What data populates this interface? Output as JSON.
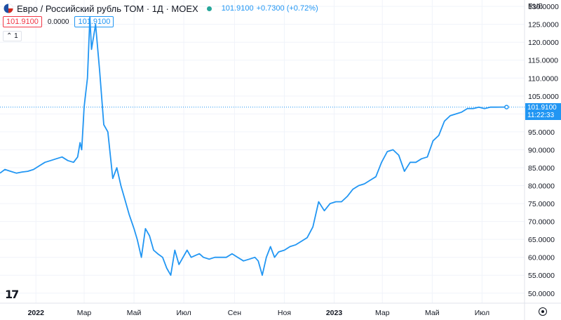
{
  "header": {
    "title": "Евро / Российский рубль TOM · 1Д · MOEX",
    "last_price": "101.9100",
    "change": "+0.7300 (+0.72%)",
    "bid": "101.9100",
    "spread": "0.0000",
    "ask": "101.9100",
    "collapse_label": "1"
  },
  "axis": {
    "unit": "RUB",
    "price_tag_value": "101.9100",
    "price_tag_time": "11:22:33"
  },
  "colors": {
    "line": "#2196f3",
    "grid": "#f0f3fa",
    "text": "#131722",
    "accent": "#2196f3",
    "down": "#f23645",
    "live": "#26a69a"
  },
  "icons": [
    "tradingview-logo-icon",
    "settings-icon",
    "live-status-dot"
  ],
  "chart_data": {
    "type": "line",
    "title": "",
    "xlabel": "",
    "ylabel": "",
    "ylim": [
      48,
      131
    ],
    "grid": true,
    "y_ticks": [
      "50.0000",
      "55.0000",
      "60.0000",
      "65.0000",
      "70.0000",
      "75.0000",
      "80.0000",
      "85.0000",
      "90.0000",
      "95.0000",
      "100.0000",
      "105.0000",
      "110.0000",
      "115.0000",
      "120.0000",
      "125.0000",
      "130.0000"
    ],
    "x_ticks": [
      {
        "label": "2022",
        "x": "2022-01-01",
        "bold": true
      },
      {
        "label": "Мар",
        "x": "2022-03-01"
      },
      {
        "label": "Май",
        "x": "2022-05-01"
      },
      {
        "label": "Июл",
        "x": "2022-07-01"
      },
      {
        "label": "Сен",
        "x": "2022-09-01"
      },
      {
        "label": "Ноя",
        "x": "2022-11-01"
      },
      {
        "label": "2023",
        "x": "2023-01-01",
        "bold": true
      },
      {
        "label": "Мар",
        "x": "2023-03-01"
      },
      {
        "label": "Май",
        "x": "2023-05-01"
      },
      {
        "label": "Июл",
        "x": "2023-07-01"
      }
    ],
    "last_value": 101.91,
    "series": [
      {
        "x": [
          "2021-11-18",
          "2021-11-24",
          "2021-12-01",
          "2021-12-08",
          "2021-12-15",
          "2021-12-22",
          "2021-12-29",
          "2022-01-05",
          "2022-01-12",
          "2022-01-19",
          "2022-01-26",
          "2022-02-02",
          "2022-02-09",
          "2022-02-16",
          "2022-02-21",
          "2022-02-24",
          "2022-02-26",
          "2022-03-01",
          "2022-03-05",
          "2022-03-08",
          "2022-03-10",
          "2022-03-15",
          "2022-03-20",
          "2022-03-25",
          "2022-03-30",
          "2022-04-05",
          "2022-04-10",
          "2022-04-15",
          "2022-04-20",
          "2022-04-25",
          "2022-05-01",
          "2022-05-05",
          "2022-05-10",
          "2022-05-15",
          "2022-05-20",
          "2022-05-25",
          "2022-05-30",
          "2022-06-05",
          "2022-06-10",
          "2022-06-15",
          "2022-06-20",
          "2022-06-25",
          "2022-06-30",
          "2022-07-05",
          "2022-07-10",
          "2022-07-15",
          "2022-07-20",
          "2022-07-25",
          "2022-08-01",
          "2022-08-08",
          "2022-08-15",
          "2022-08-22",
          "2022-08-29",
          "2022-09-05",
          "2022-09-12",
          "2022-09-19",
          "2022-09-26",
          "2022-09-30",
          "2022-10-05",
          "2022-10-10",
          "2022-10-15",
          "2022-10-20",
          "2022-10-25",
          "2022-11-01",
          "2022-11-08",
          "2022-11-15",
          "2022-11-22",
          "2022-11-29",
          "2022-12-06",
          "2022-12-13",
          "2022-12-20",
          "2022-12-27",
          "2023-01-03",
          "2023-01-10",
          "2023-01-17",
          "2023-01-24",
          "2023-01-31",
          "2023-02-07",
          "2023-02-14",
          "2023-02-21",
          "2023-02-28",
          "2023-03-07",
          "2023-03-14",
          "2023-03-21",
          "2023-03-28",
          "2023-04-04",
          "2023-04-11",
          "2023-04-18",
          "2023-04-25",
          "2023-05-02",
          "2023-05-09",
          "2023-05-16",
          "2023-05-23",
          "2023-05-30",
          "2023-06-06",
          "2023-06-13",
          "2023-06-20",
          "2023-06-27",
          "2023-07-04",
          "2023-07-11",
          "2023-07-18",
          "2023-07-25",
          "2023-07-31"
        ],
        "values": [
          83.5,
          84.5,
          84,
          83.5,
          83.8,
          84,
          84.5,
          85.5,
          86.5,
          87,
          87.5,
          88,
          87,
          86.5,
          88,
          92,
          90,
          102,
          110,
          127,
          118,
          125,
          112,
          97,
          95,
          82,
          85,
          80,
          76,
          72,
          68,
          65,
          60,
          68,
          66,
          62,
          61,
          60,
          57,
          55,
          62,
          58,
          60,
          62,
          60,
          60.5,
          61,
          60,
          59.5,
          60,
          60,
          60,
          61,
          60,
          59,
          59.5,
          60,
          59,
          55,
          60,
          63,
          60,
          61.5,
          62,
          63,
          63.5,
          64.5,
          65.5,
          68.5,
          75.5,
          73,
          75,
          75.5,
          75.5,
          77,
          79,
          80,
          80.5,
          81.5,
          82.5,
          86.5,
          89.5,
          90,
          88.5,
          84,
          86.5,
          86.5,
          87.5,
          88,
          92.5,
          94,
          98,
          99.5,
          100,
          100.5,
          101.5,
          101.5,
          101.9,
          101.5,
          101.9,
          101.9,
          101.91,
          101.91
        ]
      }
    ]
  }
}
